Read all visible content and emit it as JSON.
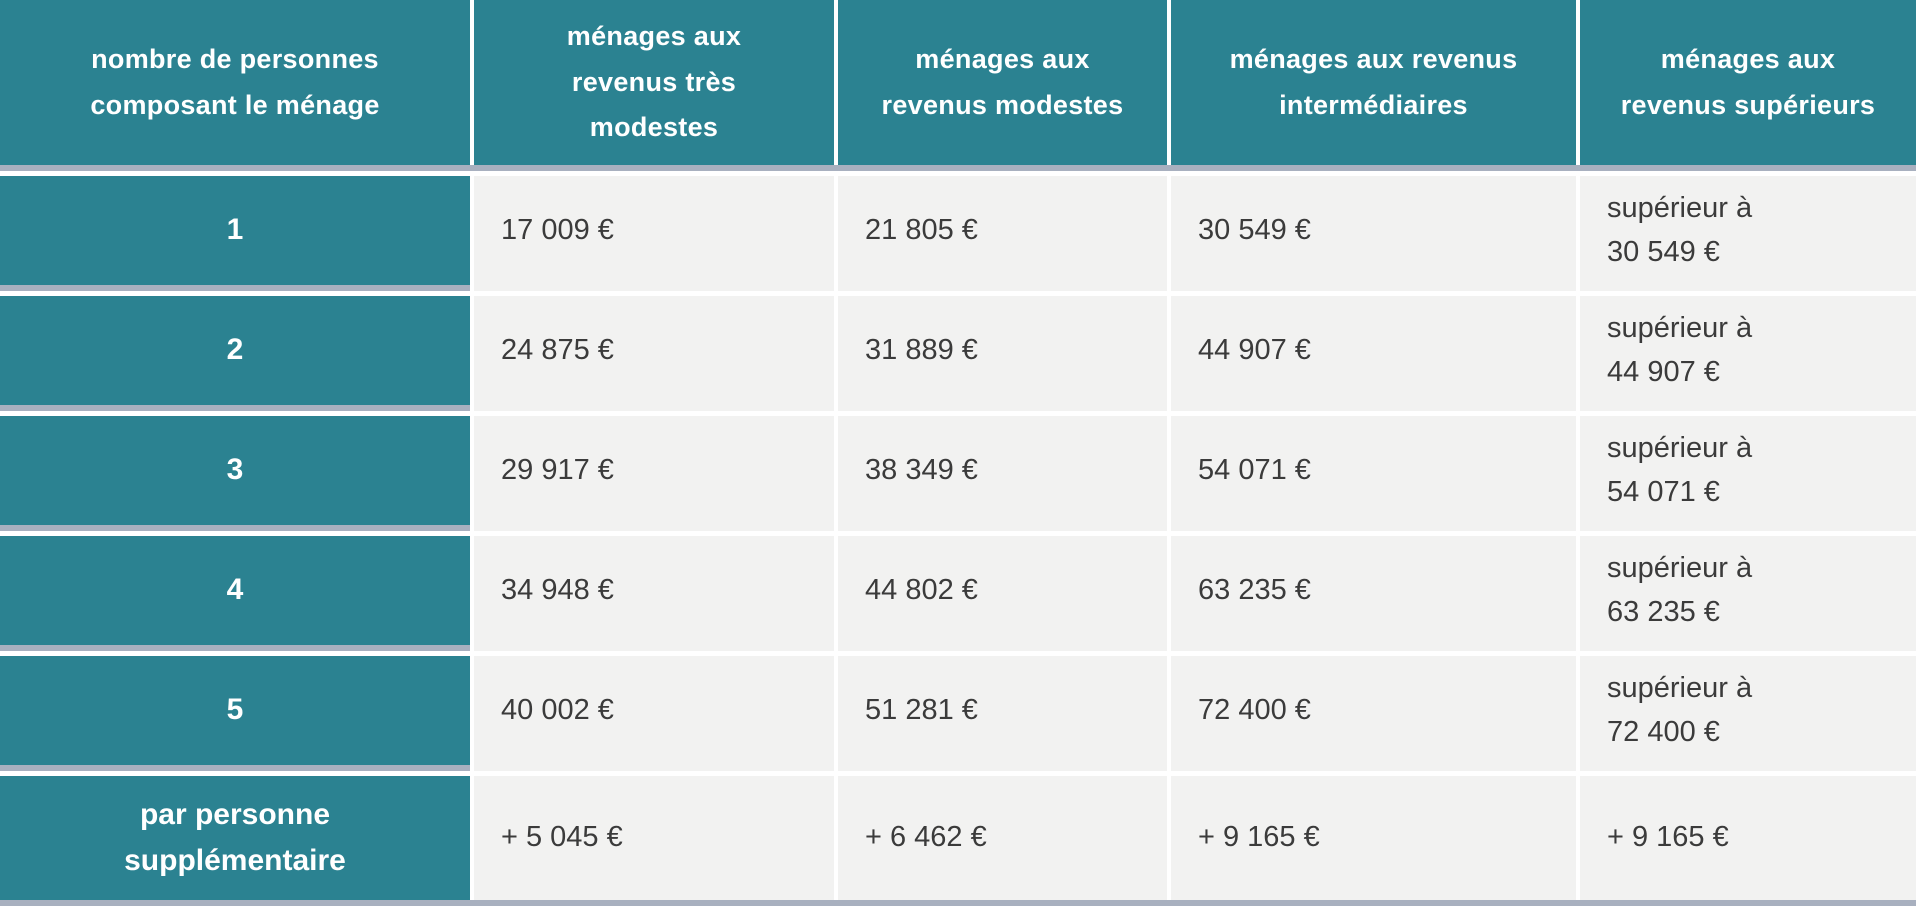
{
  "header": {
    "col0": "nombre de personnes\ncomposant le ménage",
    "col1": "ménages aux\nrevenus très\nmodestes",
    "col2": "ménages aux\nrevenus modestes",
    "col3": "ménages aux revenus\nintermédiaires",
    "col4": "ménages aux\nrevenus supérieurs"
  },
  "rows": [
    {
      "label": "1",
      "c1": "17 009 €",
      "c2": "21 805 €",
      "c3": "30 549 €",
      "c4": "supérieur à\n30 549 €"
    },
    {
      "label": "2",
      "c1": "24 875 €",
      "c2": "31 889 €",
      "c3": "44 907 €",
      "c4": "supérieur à\n44 907 €"
    },
    {
      "label": "3",
      "c1": "29 917 €",
      "c2": "38 349 €",
      "c3": "54 071 €",
      "c4": "supérieur à\n54 071 €"
    },
    {
      "label": "4",
      "c1": "34 948 €",
      "c2": "44 802 €",
      "c3": "63 235 €",
      "c4": "supérieur à\n63 235 €"
    },
    {
      "label": "5",
      "c1": "40 002 €",
      "c2": "51 281 €",
      "c3": "72 400 €",
      "c4": "supérieur à\n72 400 €"
    },
    {
      "label": "par personne\nsupplémentaire",
      "c1": "+ 5 045 €",
      "c2": "+ 6 462 €",
      "c3": "+ 9 165 €",
      "c4": "+ 9 165 €"
    }
  ],
  "colors": {
    "header_teal": "#2b8291",
    "divider_grey": "#a8b0bf",
    "cell_background": "#f2f2f1",
    "value_text": "#3b3b3b",
    "separator_white": "#ffffff"
  }
}
